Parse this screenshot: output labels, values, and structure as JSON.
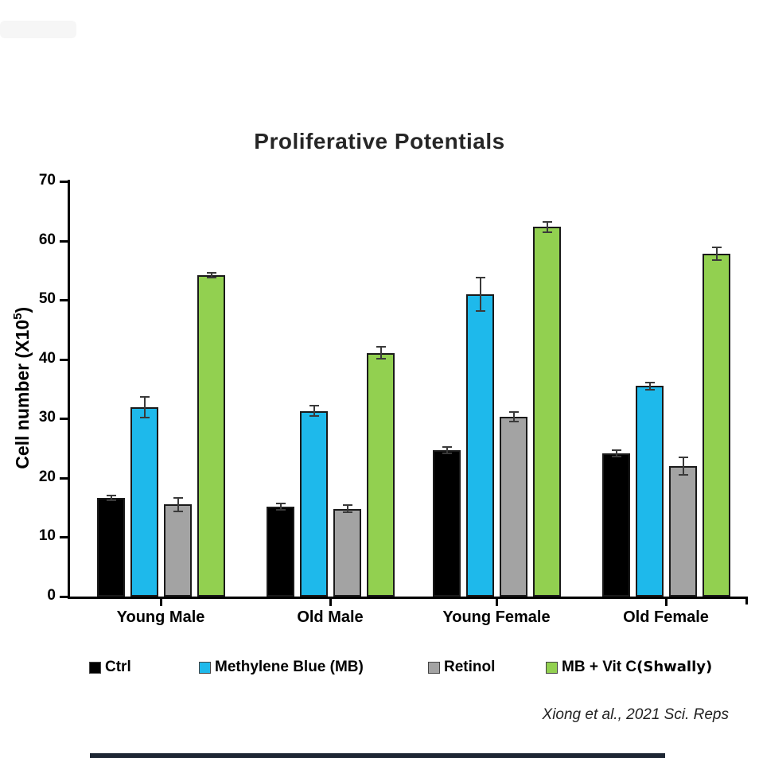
{
  "title": "Proliferative Potentials",
  "y_axis": {
    "label_pre": "Cell number (X10",
    "label_sup": "5",
    "label_post": ")",
    "ticks": [
      0,
      10,
      20,
      30,
      40,
      50,
      60,
      70
    ]
  },
  "attribution": "Xiong et al., 2021 Sci. Reps",
  "legend": {
    "items": [
      {
        "label": "Ctrl",
        "suffix": "",
        "color": "#000000"
      },
      {
        "label": "Methylene Blue (MB)",
        "suffix": "",
        "color": "#1eb9eb"
      },
      {
        "label": "Retinol",
        "suffix": "",
        "color": "#a3a3a3"
      },
      {
        "label": "MB + Vit C",
        "suffix": "(Shwally)",
        "color": "#92d050"
      }
    ]
  },
  "chart_data": {
    "type": "bar",
    "title": "Proliferative Potentials",
    "xlabel": "",
    "ylabel": "Cell number (X10^5)",
    "ylim": [
      0,
      70
    ],
    "grid": false,
    "legend_position": "bottom",
    "error_bars": true,
    "categories": [
      "Young Male",
      "Old Male",
      "Young Female",
      "Old Female"
    ],
    "series": [
      {
        "name": "Ctrl",
        "color": "#000000",
        "values": [
          16.6,
          15.2,
          24.7,
          24.1
        ],
        "errors": [
          0.3,
          0.4,
          0.4,
          0.4
        ]
      },
      {
        "name": "Methylene Blue (MB)",
        "color": "#1eb9eb",
        "values": [
          31.9,
          31.3,
          51.0,
          35.5
        ],
        "errors": [
          1.6,
          0.7,
          2.7,
          0.5
        ]
      },
      {
        "name": "Retinol",
        "color": "#a3a3a3",
        "values": [
          15.5,
          14.8,
          30.3,
          22.0
        ],
        "errors": [
          1.0,
          0.5,
          0.7,
          1.3
        ]
      },
      {
        "name": "MB + Vit C (Shwally)",
        "color": "#92d050",
        "values": [
          54.2,
          41.1,
          62.3,
          57.8
        ],
        "errors": [
          0.3,
          0.9,
          0.7,
          0.9
        ]
      }
    ]
  }
}
